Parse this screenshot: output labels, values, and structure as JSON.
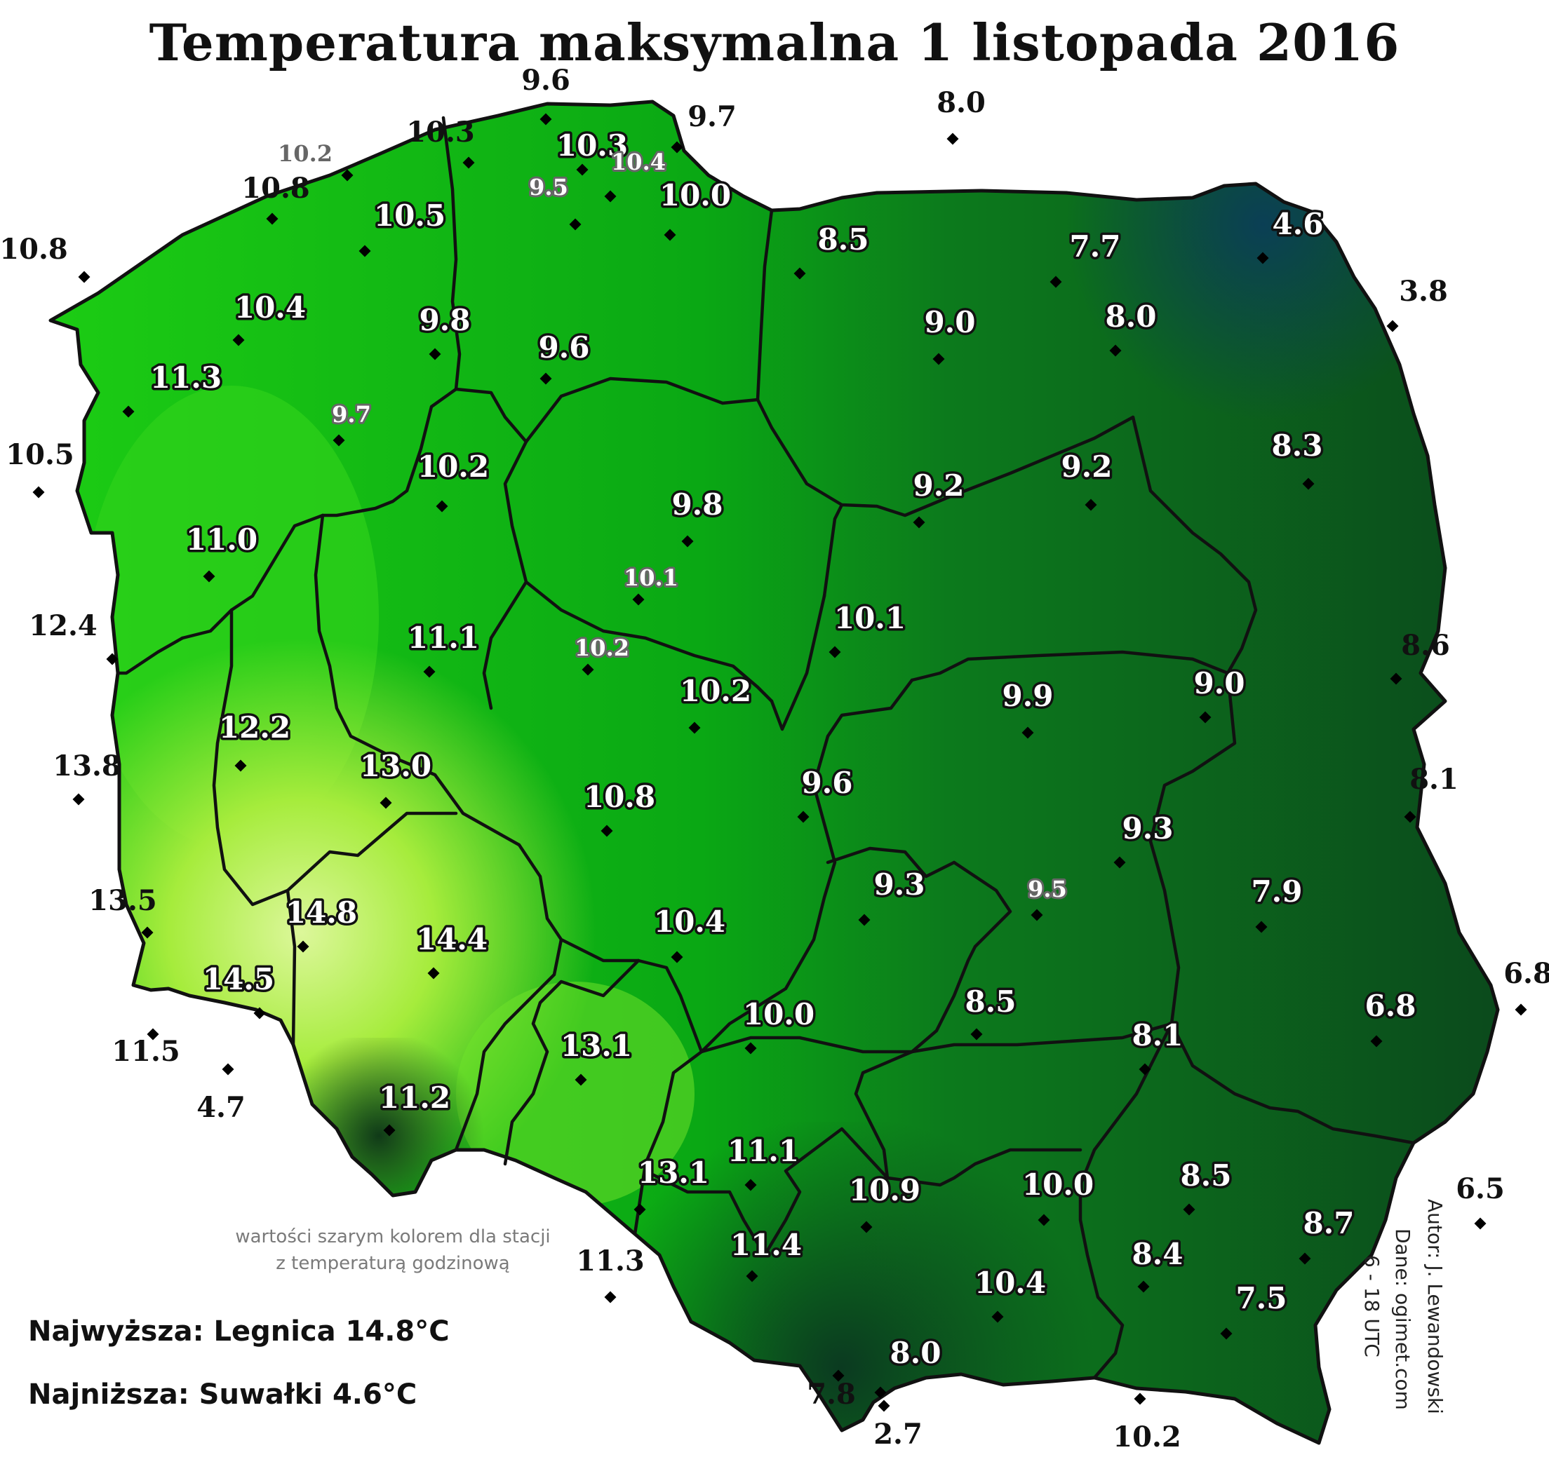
{
  "title": "Temperatura maksymalna 1 listopada 2016",
  "extremes": {
    "highest": "Najwyższa: Legnica 14.8°C",
    "lowest": "Najniższa: Suwałki 4.6°C"
  },
  "note": {
    "line1": "wartości szarym kolorem dla stacji",
    "line2": "z temperaturą godzinową"
  },
  "credits": {
    "author": "Autor: J. Lewandowski",
    "data": "Dane: ogimet.com",
    "time": "6 - 18 UTC"
  },
  "colors": {
    "background": "#ffffff",
    "border_line": "#111111",
    "label_inside": "#ffffff",
    "label_outside": "#111111",
    "label_hourly": "#666666",
    "scale_warmest": "#d8f58c",
    "scale_mid": "#0fbf1a",
    "scale_cold": "#0d4a1e",
    "scale_coldest": "#0b3f55"
  },
  "stations": [
    {
      "v": "9.6",
      "s": "out"
    },
    {
      "v": "10.3",
      "s": "out"
    },
    {
      "v": "10.3",
      "s": "in"
    },
    {
      "v": "9.7",
      "s": "out"
    },
    {
      "v": "8.0",
      "s": "out"
    },
    {
      "v": "10.2",
      "s": "grey"
    },
    {
      "v": "10.4",
      "s": "gin"
    },
    {
      "v": "10.8",
      "s": "out"
    },
    {
      "v": "10.5",
      "s": "in"
    },
    {
      "v": "9.5",
      "s": "gin"
    },
    {
      "v": "10.0",
      "s": "in"
    },
    {
      "v": "10.8",
      "s": "out"
    },
    {
      "v": "8.5",
      "s": "in"
    },
    {
      "v": "7.7",
      "s": "in"
    },
    {
      "v": "4.6",
      "s": "in"
    },
    {
      "v": "3.8",
      "s": "out"
    },
    {
      "v": "10.4",
      "s": "in"
    },
    {
      "v": "9.8",
      "s": "in"
    },
    {
      "v": "9.6",
      "s": "in"
    },
    {
      "v": "9.0",
      "s": "in"
    },
    {
      "v": "8.0",
      "s": "in"
    },
    {
      "v": "11.3",
      "s": "in"
    },
    {
      "v": "9.7",
      "s": "gin"
    },
    {
      "v": "10.5",
      "s": "out"
    },
    {
      "v": "10.2",
      "s": "in"
    },
    {
      "v": "9.2",
      "s": "in"
    },
    {
      "v": "9.2",
      "s": "in"
    },
    {
      "v": "8.3",
      "s": "in"
    },
    {
      "v": "9.8",
      "s": "in"
    },
    {
      "v": "11.0",
      "s": "in"
    },
    {
      "v": "10.1",
      "s": "gin"
    },
    {
      "v": "10.1",
      "s": "in"
    },
    {
      "v": "12.4",
      "s": "out"
    },
    {
      "v": "11.1",
      "s": "in"
    },
    {
      "v": "10.2",
      "s": "gin"
    },
    {
      "v": "9.0",
      "s": "in"
    },
    {
      "v": "8.6",
      "s": "out"
    },
    {
      "v": "9.9",
      "s": "in"
    },
    {
      "v": "10.2",
      "s": "in"
    },
    {
      "v": "12.2",
      "s": "in"
    },
    {
      "v": "13.8",
      "s": "out"
    },
    {
      "v": "13.0",
      "s": "in"
    },
    {
      "v": "9.6",
      "s": "in"
    },
    {
      "v": "8.1",
      "s": "out"
    },
    {
      "v": "10.8",
      "s": "in"
    },
    {
      "v": "9.3",
      "s": "in"
    },
    {
      "v": "13.5",
      "s": "out"
    },
    {
      "v": "14.8",
      "s": "in"
    },
    {
      "v": "9.5",
      "s": "gin"
    },
    {
      "v": "9.3",
      "s": "in"
    },
    {
      "v": "7.9",
      "s": "in"
    },
    {
      "v": "14.4",
      "s": "in"
    },
    {
      "v": "10.4",
      "s": "in"
    },
    {
      "v": "6.8",
      "s": "out"
    },
    {
      "v": "14.5",
      "s": "in"
    },
    {
      "v": "8.5",
      "s": "in"
    },
    {
      "v": "6.8",
      "s": "in"
    },
    {
      "v": "10.0",
      "s": "in"
    },
    {
      "v": "11.5",
      "s": "out"
    },
    {
      "v": "4.7",
      "s": "out"
    },
    {
      "v": "8.1",
      "s": "in"
    },
    {
      "v": "13.1",
      "s": "in"
    },
    {
      "v": "11.2",
      "s": "in"
    },
    {
      "v": "11.1",
      "s": "in"
    },
    {
      "v": "8.5",
      "s": "in"
    },
    {
      "v": "13.1",
      "s": "in"
    },
    {
      "v": "10.0",
      "s": "in"
    },
    {
      "v": "10.9",
      "s": "in"
    },
    {
      "v": "6.5",
      "s": "out"
    },
    {
      "v": "8.7",
      "s": "in"
    },
    {
      "v": "11.4",
      "s": "in"
    },
    {
      "v": "8.4",
      "s": "in"
    },
    {
      "v": "11.3",
      "s": "out"
    },
    {
      "v": "10.4",
      "s": "in"
    },
    {
      "v": "7.5",
      "s": "in"
    },
    {
      "v": "8.0",
      "s": "in"
    },
    {
      "v": "7.8",
      "s": "out"
    },
    {
      "v": "10.2",
      "s": "out"
    },
    {
      "v": "2.7",
      "s": "out"
    }
  ]
}
